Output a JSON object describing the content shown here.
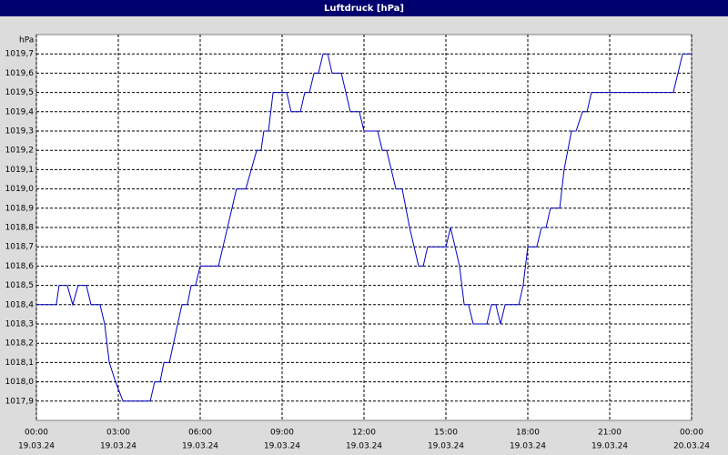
{
  "chart_data": {
    "type": "line",
    "title": "Luftdruck [hPa]",
    "y_label": "hPa",
    "xlim": [
      0,
      24
    ],
    "ylim": [
      1017.8,
      1019.8
    ],
    "grid": true,
    "xticks": [
      {
        "value": 0,
        "label": "00:00"
      },
      {
        "value": 3,
        "label": "03:00"
      },
      {
        "value": 6,
        "label": "06:00"
      },
      {
        "value": 9,
        "label": "09:00"
      },
      {
        "value": 12,
        "label": "12:00"
      },
      {
        "value": 15,
        "label": "15:00"
      },
      {
        "value": 18,
        "label": "18:00"
      },
      {
        "value": 21,
        "label": "21:00"
      },
      {
        "value": 24,
        "label": "00:00"
      }
    ],
    "xtick_dates": [
      "19.03.24",
      "19.03.24",
      "19.03.24",
      "19.03.24",
      "19.03.24",
      "19.03.24",
      "19.03.24",
      "19.03.24",
      "20.03.24"
    ],
    "yticks": [
      {
        "value": 1017.9,
        "label": "1017,9"
      },
      {
        "value": 1018.0,
        "label": "1018,0"
      },
      {
        "value": 1018.1,
        "label": "1018,1"
      },
      {
        "value": 1018.2,
        "label": "1018,2"
      },
      {
        "value": 1018.3,
        "label": "1018,3"
      },
      {
        "value": 1018.4,
        "label": "1018,4"
      },
      {
        "value": 1018.5,
        "label": "1018,5"
      },
      {
        "value": 1018.6,
        "label": "1018,6"
      },
      {
        "value": 1018.7,
        "label": "1018,7"
      },
      {
        "value": 1018.8,
        "label": "1018,8"
      },
      {
        "value": 1018.9,
        "label": "1018,9"
      },
      {
        "value": 1019.0,
        "label": "1019,0"
      },
      {
        "value": 1019.1,
        "label": "1019,1"
      },
      {
        "value": 1019.2,
        "label": "1019,2"
      },
      {
        "value": 1019.3,
        "label": "1019,3"
      },
      {
        "value": 1019.4,
        "label": "1019,4"
      },
      {
        "value": 1019.5,
        "label": "1019,5"
      },
      {
        "value": 1019.6,
        "label": "1019,6"
      },
      {
        "value": 1019.7,
        "label": "1019,7"
      }
    ],
    "x": [
      0,
      0.73,
      0.83,
      1.13,
      1.33,
      1.53,
      1.83,
      2,
      2.33,
      2.5,
      2.67,
      2.9,
      3.17,
      4.17,
      4.33,
      4.53,
      4.67,
      4.87,
      5.33,
      5.53,
      5.67,
      5.83,
      6,
      6.67,
      7.33,
      7.67,
      8.07,
      8.23,
      8.33,
      8.5,
      8.67,
      9.17,
      9.33,
      9.67,
      9.83,
      10,
      10.17,
      10.33,
      10.5,
      10.67,
      10.83,
      11.17,
      11.5,
      11.83,
      12,
      12.5,
      12.67,
      12.83,
      13.17,
      13.4,
      13.67,
      14,
      14.17,
      14.33,
      15,
      15.17,
      15.5,
      15.67,
      15.83,
      16,
      16.5,
      16.67,
      16.83,
      17,
      17.17,
      17.67,
      17.83,
      18,
      18.33,
      18.5,
      18.67,
      18.83,
      19.17,
      19.33,
      19.6,
      19.77,
      20,
      20.17,
      20.33,
      23.33,
      23.67,
      24
    ],
    "series": [
      {
        "name": "Luftdruck",
        "color": "#0000c0",
        "values": [
          1018.4,
          1018.4,
          1018.5,
          1018.5,
          1018.4,
          1018.5,
          1018.5,
          1018.4,
          1018.4,
          1018.3,
          1018.1,
          1018.0,
          1017.9,
          1017.9,
          1018.0,
          1018.0,
          1018.1,
          1018.1,
          1018.4,
          1018.4,
          1018.5,
          1018.5,
          1018.6,
          1018.6,
          1019.0,
          1019.0,
          1019.2,
          1019.2,
          1019.3,
          1019.3,
          1019.5,
          1019.5,
          1019.4,
          1019.4,
          1019.5,
          1019.5,
          1019.6,
          1019.6,
          1019.7,
          1019.7,
          1019.6,
          1019.6,
          1019.4,
          1019.4,
          1019.3,
          1019.3,
          1019.2,
          1019.2,
          1019.0,
          1019.0,
          1018.8,
          1018.6,
          1018.6,
          1018.7,
          1018.7,
          1018.8,
          1018.6,
          1018.4,
          1018.4,
          1018.3,
          1018.3,
          1018.4,
          1018.4,
          1018.3,
          1018.4,
          1018.4,
          1018.5,
          1018.7,
          1018.7,
          1018.8,
          1018.8,
          1018.9,
          1018.9,
          1019.1,
          1019.3,
          1019.3,
          1019.4,
          1019.4,
          1019.5,
          1019.5,
          1019.7,
          1019.7
        ]
      }
    ]
  }
}
